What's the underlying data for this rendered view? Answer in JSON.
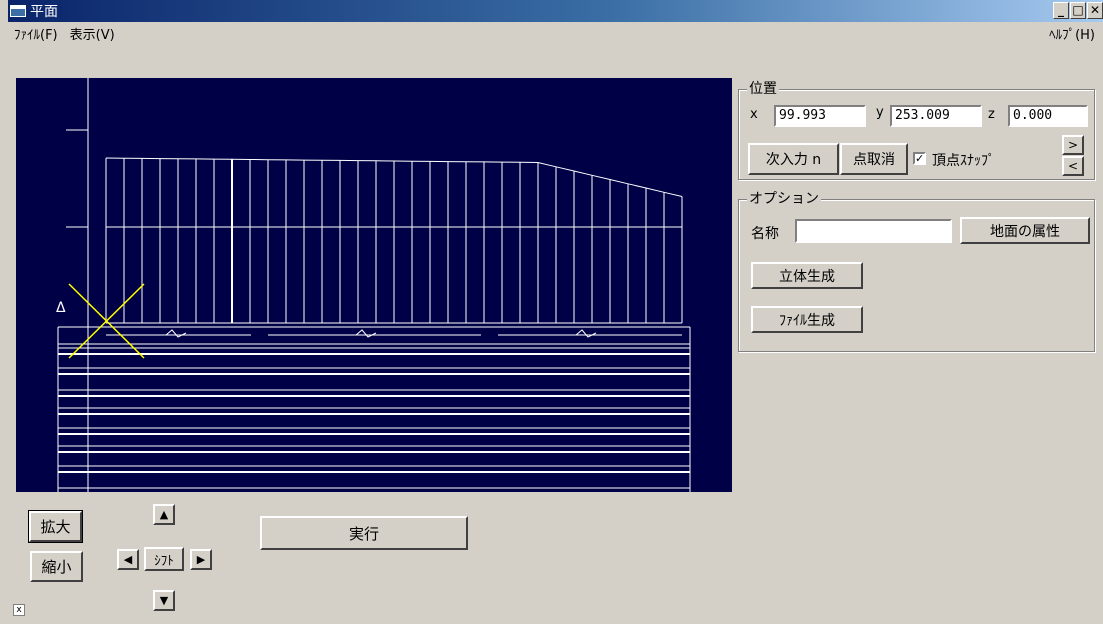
{
  "window": {
    "title": "平面",
    "minimize": "_",
    "maximize": "□",
    "close": "✕"
  },
  "menu": {
    "file": "ﾌｧｲﾙ(F)",
    "view": "表示(V)",
    "help": "ﾍﾙﾌﾟ(H)"
  },
  "position_group": {
    "title": "位置",
    "x_label": "x",
    "x_value": "99.993",
    "y_label": "y",
    "y_value": "253.009",
    "z_label": "z",
    "z_value": "0.000",
    "next_input_label": "次入力 n",
    "cancel_point_label": "点取消",
    "vertex_snap_label": "頂点ｽﾅｯﾌﾟ",
    "vertex_snap_checked": true,
    "scroll_right": ">",
    "scroll_left": "<"
  },
  "options_group": {
    "title": "オプション",
    "name_label": "名称",
    "name_value": "",
    "ground_attr_label": "地面の属性",
    "solid_gen_label": "立体生成",
    "file_gen_label": "ﾌｧｲﾙ生成"
  },
  "controls": {
    "zoom_in_label": "拡大",
    "zoom_out_label": "縮小",
    "shift_label": "ｼﾌﾄ",
    "execute_label": "実行",
    "arrow_up": "▲",
    "arrow_down": "▼",
    "arrow_left": "◀",
    "arrow_right": "▶",
    "grip": "x"
  },
  "canvas": {
    "background": "#000046",
    "line_color": "#ffffff",
    "marker_color": "#ffff00",
    "marker_label": "Δ"
  }
}
